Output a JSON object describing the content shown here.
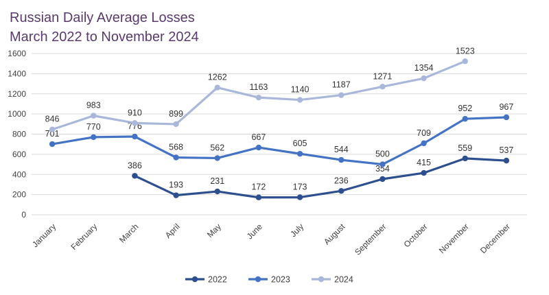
{
  "chart_data": {
    "type": "line",
    "title": "Russian Daily Average Losses",
    "subtitle": "March 2022 to November 2024",
    "xlabel": "",
    "ylabel": "",
    "ylim": [
      0,
      1600
    ],
    "yticks": [
      0,
      200,
      400,
      600,
      800,
      1000,
      1200,
      1400,
      1600
    ],
    "grid": true,
    "legend_position": "bottom",
    "categories": [
      "January",
      "February",
      "March",
      "April",
      "May",
      "June",
      "July",
      "August",
      "September",
      "October",
      "November",
      "December"
    ],
    "series": [
      {
        "name": "2022",
        "color": "#2e4f8f",
        "values": [
          null,
          null,
          386,
          193,
          231,
          172,
          173,
          236,
          354,
          415,
          559,
          537
        ]
      },
      {
        "name": "2023",
        "color": "#4472c4",
        "values": [
          701,
          770,
          776,
          568,
          562,
          667,
          605,
          544,
          500,
          709,
          952,
          967
        ]
      },
      {
        "name": "2024",
        "color": "#a9b8da",
        "values": [
          846,
          983,
          910,
          899,
          1262,
          1163,
          1140,
          1187,
          1271,
          1354,
          1523,
          null
        ]
      }
    ]
  }
}
